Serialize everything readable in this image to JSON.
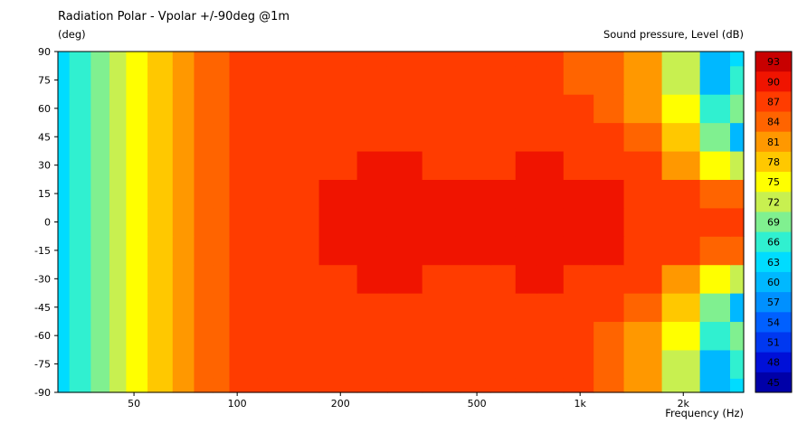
{
  "chart_data": {
    "type": "heatmap",
    "title": "Radiation Polar - Vpolar +/-90deg @1m",
    "ylabel": "(deg)",
    "xlabel": "Frequency  (Hz)",
    "zlabel": "Sound pressure, Level  (dB)",
    "x_scale": "log",
    "xlim": [
      30,
      3000
    ],
    "ylim": [
      -90,
      90
    ],
    "x_ticks": [
      {
        "value": 50,
        "label": "50"
      },
      {
        "value": 100,
        "label": "100"
      },
      {
        "value": 200,
        "label": "200"
      },
      {
        "value": 500,
        "label": "500"
      },
      {
        "value": 1000,
        "label": "1k"
      },
      {
        "value": 2000,
        "label": "2k"
      }
    ],
    "y_ticks": [
      90,
      75,
      60,
      45,
      30,
      15,
      0,
      -15,
      -30,
      -45,
      -60,
      -75,
      -90
    ],
    "levels": [
      45,
      48,
      51,
      54,
      57,
      60,
      63,
      66,
      69,
      72,
      75,
      78,
      81,
      84,
      87,
      90,
      93
    ],
    "level_colors": [
      "#0000a8",
      "#0010d8",
      "#0038f0",
      "#0060ff",
      "#0090ff",
      "#00b8ff",
      "#00dcff",
      "#30f0d0",
      "#80f090",
      "#c8f050",
      "#ffff00",
      "#ffc800",
      "#ff9800",
      "#ff6400",
      "#ff3c00",
      "#f01400",
      "#c80000"
    ],
    "x": [
      30,
      35,
      40,
      45,
      50,
      60,
      70,
      80,
      90,
      100,
      150,
      200,
      250,
      300,
      400,
      500,
      600,
      700,
      800,
      1000,
      1200,
      1500,
      2000,
      2500,
      3000
    ],
    "y": [
      -90,
      -75,
      -60,
      -45,
      -30,
      -15,
      0,
      15,
      30,
      45,
      60,
      75,
      90
    ],
    "z": [
      [
        63,
        66,
        69,
        72,
        75,
        78,
        81,
        84,
        84,
        87,
        87,
        88,
        88,
        88,
        88,
        87,
        87,
        88,
        88,
        87,
        84,
        81,
        72,
        60,
        63
      ],
      [
        63,
        66,
        69,
        72,
        75,
        78,
        81,
        84,
        84,
        87,
        87,
        88,
        88,
        88,
        88,
        87,
        87,
        88,
        88,
        87,
        84,
        81,
        72,
        60,
        66
      ],
      [
        63,
        66,
        69,
        72,
        75,
        78,
        81,
        84,
        84,
        87,
        88,
        88,
        88,
        88,
        88,
        88,
        88,
        88,
        88,
        87,
        84,
        81,
        75,
        66,
        69
      ],
      [
        63,
        66,
        69,
        72,
        75,
        78,
        81,
        84,
        84,
        87,
        88,
        88,
        88,
        88,
        88,
        88,
        88,
        88,
        88,
        87,
        86,
        84,
        78,
        69,
        60
      ],
      [
        63,
        66,
        69,
        72,
        75,
        78,
        81,
        84,
        84,
        87,
        88,
        88,
        89,
        90,
        88,
        88,
        88,
        89,
        89,
        88,
        87,
        86,
        81,
        75,
        72
      ],
      [
        63,
        66,
        69,
        72,
        75,
        78,
        81,
        84,
        84,
        87,
        88,
        89,
        90,
        91,
        89,
        89,
        89,
        91,
        91,
        91,
        89,
        88,
        86,
        84,
        84
      ],
      [
        63,
        66,
        69,
        72,
        75,
        78,
        81,
        84,
        84,
        87,
        88,
        89,
        90,
        91,
        89,
        89,
        89,
        91,
        91,
        91,
        89,
        88,
        88,
        87,
        87
      ],
      [
        63,
        66,
        69,
        72,
        75,
        78,
        81,
        84,
        84,
        87,
        88,
        89,
        90,
        91,
        89,
        89,
        89,
        91,
        91,
        91,
        89,
        88,
        86,
        84,
        84
      ],
      [
        63,
        66,
        69,
        72,
        75,
        78,
        81,
        84,
        84,
        87,
        88,
        88,
        89,
        90,
        88,
        88,
        88,
        89,
        89,
        88,
        87,
        86,
        81,
        75,
        72
      ],
      [
        63,
        66,
        69,
        72,
        75,
        78,
        81,
        84,
        84,
        87,
        88,
        88,
        88,
        88,
        88,
        88,
        88,
        88,
        88,
        87,
        86,
        84,
        78,
        69,
        60
      ],
      [
        63,
        66,
        69,
        72,
        75,
        78,
        81,
        84,
        84,
        87,
        88,
        88,
        88,
        88,
        88,
        87,
        86,
        86,
        87,
        86,
        84,
        81,
        75,
        66,
        69
      ],
      [
        63,
        66,
        69,
        72,
        75,
        78,
        81,
        84,
        84,
        87,
        87,
        88,
        88,
        88,
        88,
        87,
        86,
        86,
        86,
        85,
        84,
        81,
        72,
        60,
        66
      ],
      [
        63,
        66,
        69,
        72,
        75,
        78,
        81,
        84,
        84,
        87,
        87,
        88,
        88,
        88,
        88,
        87,
        86,
        86,
        86,
        85,
        84,
        81,
        72,
        60,
        63
      ]
    ],
    "grid": false,
    "legend": "colorbar-right"
  }
}
